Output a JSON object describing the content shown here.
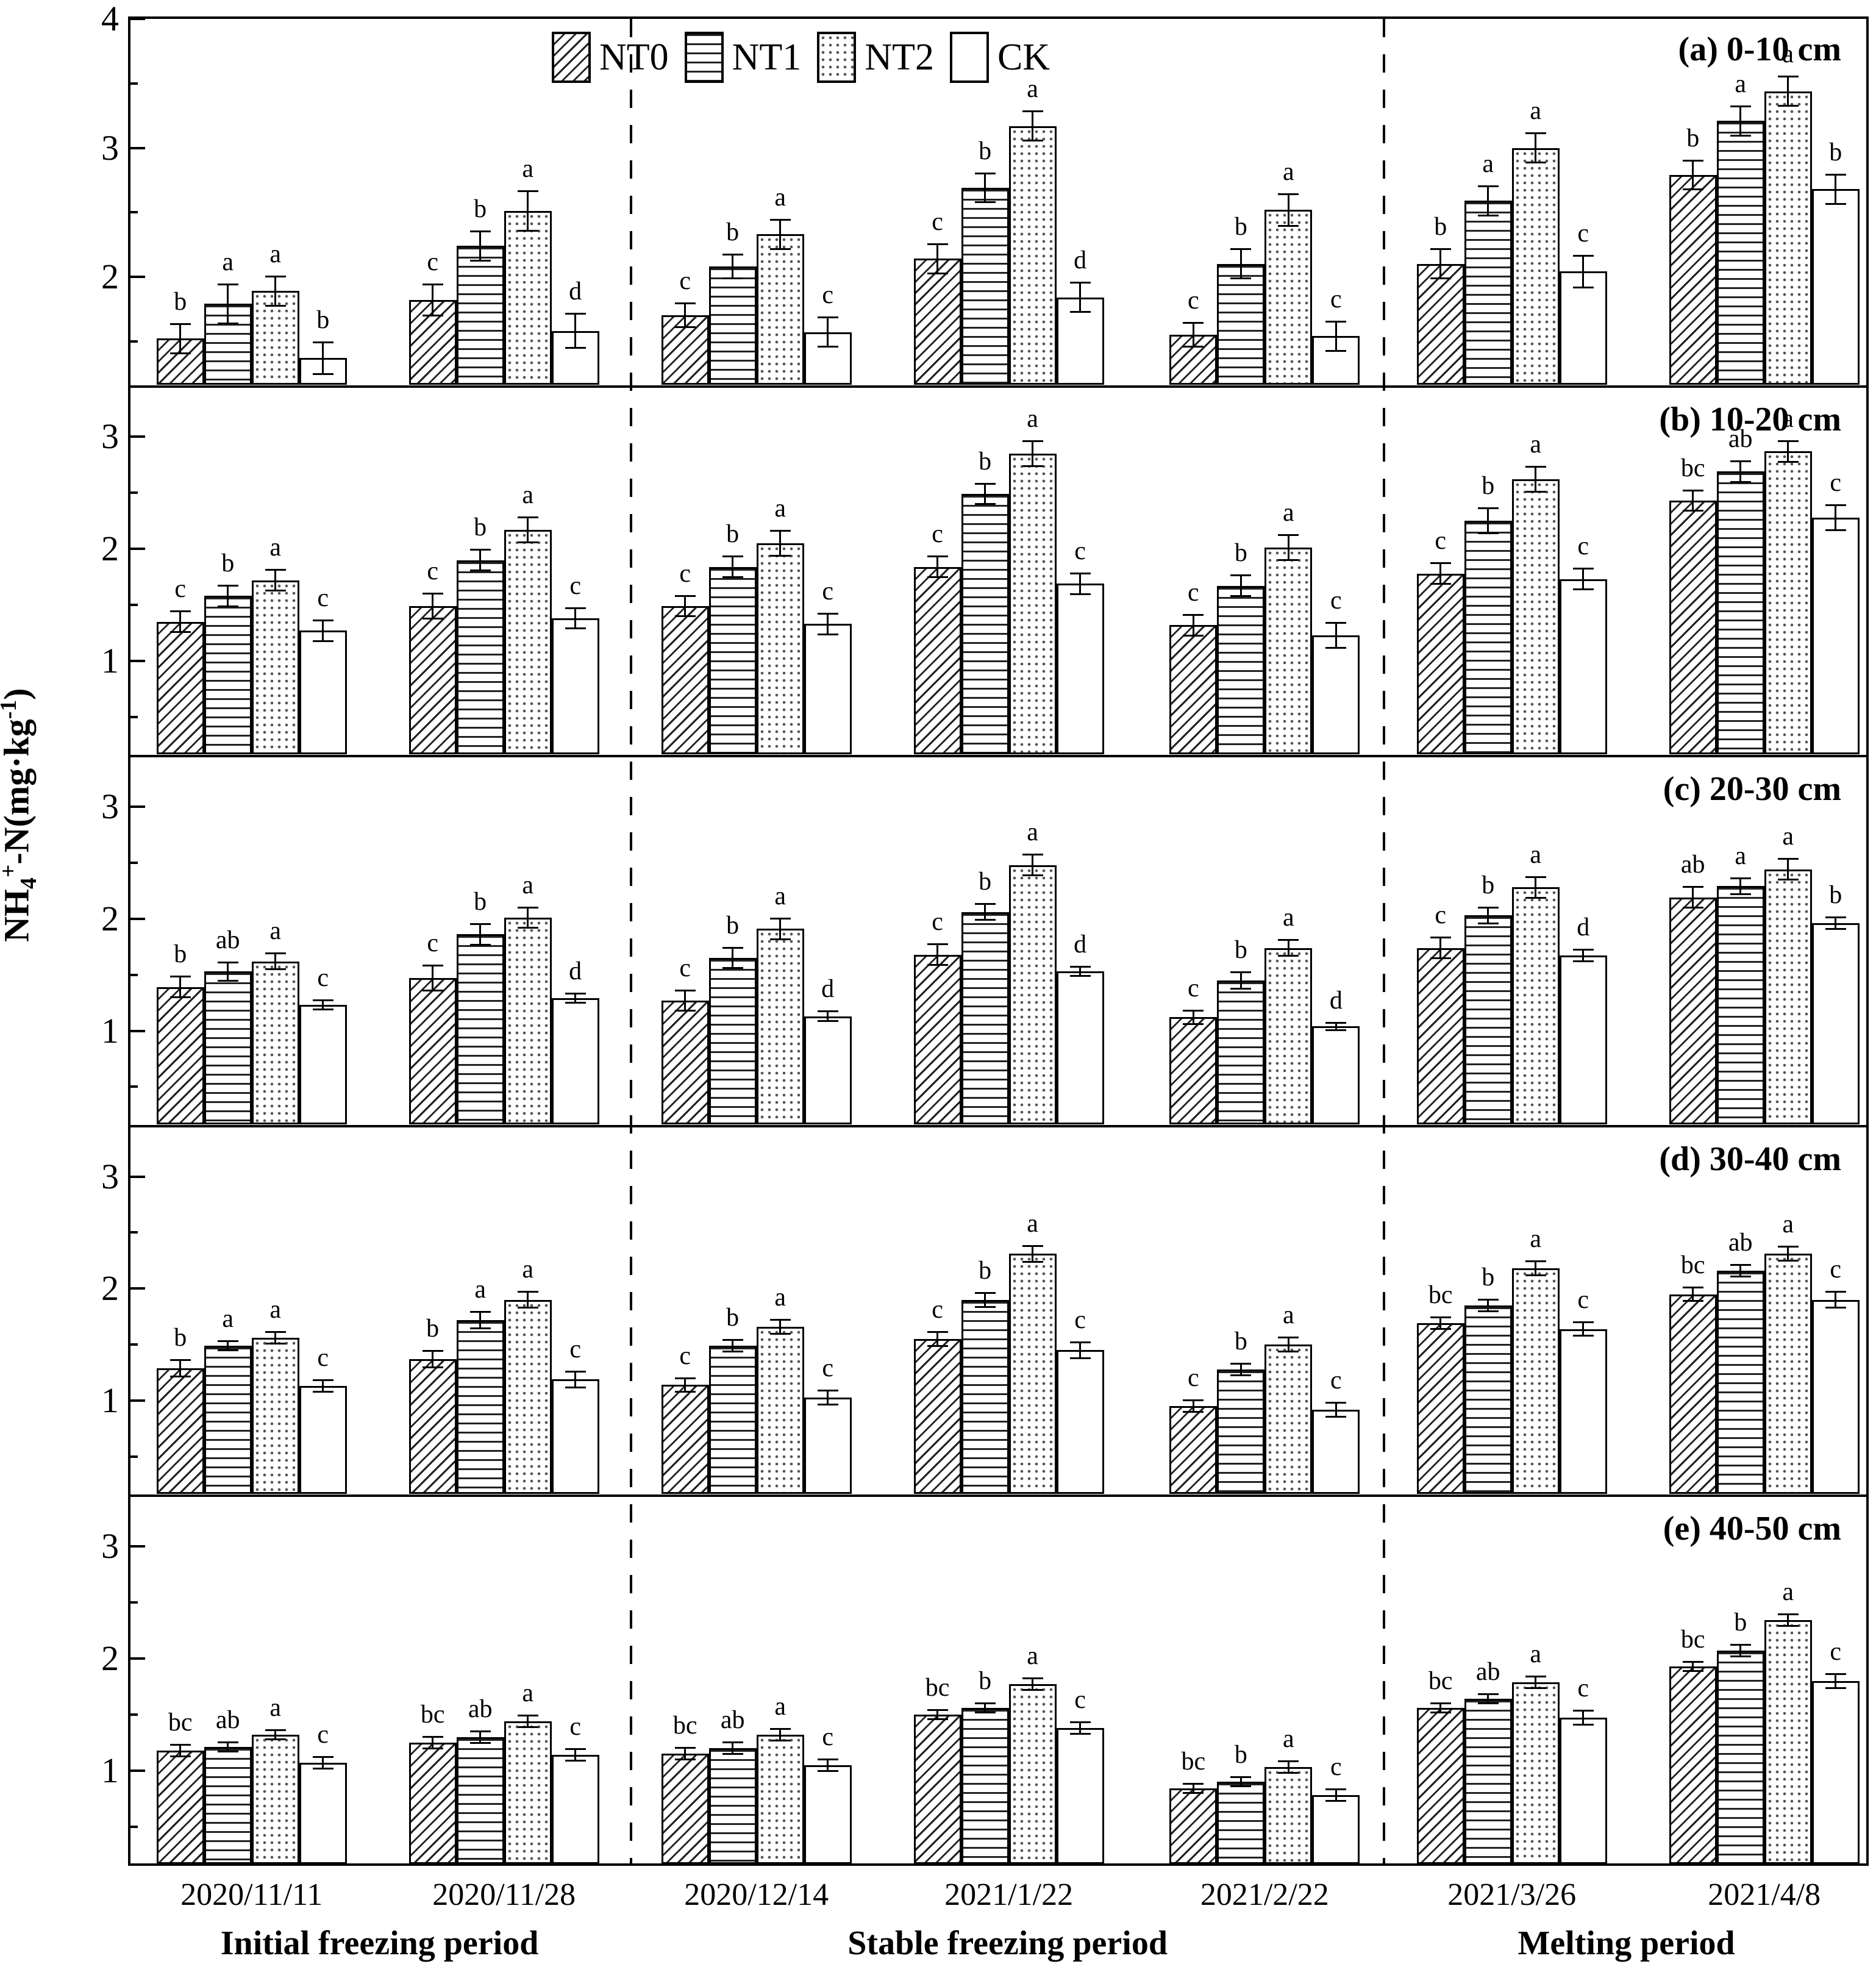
{
  "figure": {
    "y_axis_label_parts": {
      "prefix": "NH",
      "sub": "4",
      "sup": "+",
      "mid": "-N(mg·kg",
      "exp": "-1",
      "end": ")"
    },
    "x_axis_periods": [
      {
        "label": "Initial freezing period",
        "group_indices": [
          0,
          1
        ]
      },
      {
        "label": "Stable freezing period",
        "group_indices": [
          2,
          3,
          4
        ]
      },
      {
        "label": "Melting period",
        "group_indices": [
          5,
          6
        ]
      }
    ]
  },
  "legend": {
    "items": [
      {
        "label": "NT0",
        "pattern": "diagonal-hatch"
      },
      {
        "label": "NT1",
        "pattern": "horizontal-lines"
      },
      {
        "label": "NT2",
        "pattern": "dots"
      },
      {
        "label": "CK",
        "pattern": "plain-white"
      }
    ]
  },
  "chart_data": {
    "type": "bar",
    "categories": [
      "2020/11/11",
      "2020/11/28",
      "2020/12/14",
      "2021/1/22",
      "2021/2/22",
      "2021/3/26",
      "2021/4/8"
    ],
    "ylabel": "NH4+-N(mg·kg-1)",
    "grid": false,
    "legend_position": "top-center",
    "panels": [
      {
        "id": "a",
        "title": "(a) 0-10 cm",
        "depth": "0-10 cm",
        "ylim": [
          1.15,
          4.02
        ],
        "yticks_major": [
          2,
          3,
          4
        ],
        "yticks_minor": [
          1.5,
          2.5,
          3.5
        ],
        "series": [
          {
            "name": "NT0",
            "values": [
              1.52,
              1.82,
              1.7,
              2.14,
              1.55,
              2.1,
              2.79
            ],
            "errors": [
              0.12,
              0.13,
              0.1,
              0.12,
              0.1,
              0.12,
              0.12
            ],
            "letters": [
              "b",
              "c",
              "c",
              "c",
              "c",
              "b",
              "b"
            ]
          },
          {
            "name": "NT1",
            "values": [
              1.79,
              2.24,
              2.08,
              2.69,
              2.1,
              2.59,
              3.21
            ],
            "errors": [
              0.16,
              0.12,
              0.1,
              0.12,
              0.12,
              0.12,
              0.12
            ],
            "letters": [
              "a",
              "b",
              "b",
              "b",
              "b",
              "a",
              "a"
            ]
          },
          {
            "name": "NT2",
            "values": [
              1.89,
              2.51,
              2.33,
              3.17,
              2.52,
              3.0,
              3.44
            ],
            "errors": [
              0.12,
              0.16,
              0.12,
              0.12,
              0.13,
              0.12,
              0.12
            ],
            "letters": [
              "a",
              "a",
              "a",
              "a",
              "a",
              "a",
              "a"
            ]
          },
          {
            "name": "CK",
            "values": [
              1.37,
              1.58,
              1.57,
              1.84,
              1.54,
              2.04,
              2.68
            ],
            "errors": [
              0.13,
              0.14,
              0.12,
              0.12,
              0.12,
              0.13,
              0.12
            ],
            "letters": [
              "b",
              "d",
              "c",
              "d",
              "c",
              "c",
              "b"
            ]
          }
        ]
      },
      {
        "id": "b",
        "title": "(b) 10-20 cm",
        "depth": "10-20 cm",
        "ylim": [
          0.15,
          3.45
        ],
        "yticks_major": [
          1,
          2,
          3
        ],
        "yticks_minor": [
          0.5,
          1.5,
          2.5
        ],
        "series": [
          {
            "name": "NT0",
            "values": [
              1.35,
              1.49,
              1.49,
              1.84,
              1.32,
              1.78,
              2.43
            ],
            "errors": [
              0.1,
              0.12,
              0.1,
              0.1,
              0.1,
              0.1,
              0.1
            ],
            "letters": [
              "c",
              "c",
              "c",
              "c",
              "c",
              "c",
              "bc"
            ]
          },
          {
            "name": "NT1",
            "values": [
              1.58,
              1.9,
              1.84,
              2.49,
              1.67,
              2.25,
              2.69
            ],
            "errors": [
              0.1,
              0.1,
              0.1,
              0.1,
              0.1,
              0.12,
              0.1
            ],
            "letters": [
              "b",
              "b",
              "b",
              "b",
              "b",
              "b",
              "ab"
            ]
          },
          {
            "name": "NT2",
            "values": [
              1.72,
              2.17,
              2.05,
              2.85,
              2.01,
              2.62,
              2.87
            ],
            "errors": [
              0.1,
              0.12,
              0.12,
              0.12,
              0.12,
              0.12,
              0.1
            ],
            "letters": [
              "a",
              "a",
              "a",
              "a",
              "a",
              "a",
              "a"
            ]
          },
          {
            "name": "CK",
            "values": [
              1.27,
              1.38,
              1.33,
              1.69,
              1.23,
              1.73,
              2.28
            ],
            "errors": [
              0.1,
              0.1,
              0.1,
              0.1,
              0.12,
              0.1,
              0.12
            ],
            "letters": [
              "c",
              "c",
              "c",
              "c",
              "c",
              "c",
              "c"
            ]
          }
        ]
      },
      {
        "id": "c",
        "title": "(c) 20-30 cm",
        "depth": "20-30 cm",
        "ylim": [
          0.15,
          3.45
        ],
        "yticks_major": [
          1,
          2,
          3
        ],
        "yticks_minor": [
          0.5,
          1.5,
          2.5
        ],
        "series": [
          {
            "name": "NT0",
            "values": [
              1.39,
              1.47,
              1.27,
              1.68,
              1.12,
              1.74,
              2.19
            ],
            "errors": [
              0.1,
              0.12,
              0.1,
              0.1,
              0.07,
              0.1,
              0.1
            ],
            "letters": [
              "b",
              "c",
              "c",
              "c",
              "c",
              "c",
              "ab"
            ]
          },
          {
            "name": "NT1",
            "values": [
              1.53,
              1.86,
              1.65,
              2.06,
              1.45,
              2.03,
              2.29
            ],
            "errors": [
              0.09,
              0.1,
              0.1,
              0.08,
              0.08,
              0.08,
              0.08
            ],
            "letters": [
              "ab",
              "b",
              "b",
              "b",
              "b",
              "b",
              "a"
            ]
          },
          {
            "name": "NT2",
            "values": [
              1.62,
              2.01,
              1.91,
              2.48,
              1.74,
              2.28,
              2.44
            ],
            "errors": [
              0.08,
              0.1,
              0.1,
              0.1,
              0.08,
              0.1,
              0.1
            ],
            "letters": [
              "a",
              "a",
              "a",
              "a",
              "a",
              "a",
              "a"
            ]
          },
          {
            "name": "CK",
            "values": [
              1.23,
              1.29,
              1.13,
              1.53,
              1.04,
              1.67,
              1.96
            ],
            "errors": [
              0.05,
              0.05,
              0.05,
              0.05,
              0.04,
              0.06,
              0.06
            ],
            "letters": [
              "c",
              "d",
              "d",
              "d",
              "d",
              "d",
              "b"
            ]
          }
        ]
      },
      {
        "id": "d",
        "title": "(d) 30-40 cm",
        "depth": "30-40 cm",
        "ylim": [
          0.15,
          3.45
        ],
        "yticks_major": [
          1,
          2,
          3
        ],
        "yticks_minor": [
          0.5,
          1.5,
          2.5
        ],
        "series": [
          {
            "name": "NT0",
            "values": [
              1.29,
              1.37,
              1.14,
              1.55,
              0.95,
              1.69,
              1.95
            ],
            "errors": [
              0.08,
              0.08,
              0.07,
              0.07,
              0.06,
              0.06,
              0.07
            ],
            "letters": [
              "b",
              "b",
              "c",
              "c",
              "c",
              "bc",
              "bc"
            ]
          },
          {
            "name": "NT1",
            "values": [
              1.49,
              1.72,
              1.49,
              1.9,
              1.28,
              1.85,
              2.16
            ],
            "errors": [
              0.05,
              0.08,
              0.06,
              0.07,
              0.06,
              0.06,
              0.06
            ],
            "letters": [
              "a",
              "a",
              "b",
              "b",
              "b",
              "b",
              "ab"
            ]
          },
          {
            "name": "NT2",
            "values": [
              1.56,
              1.9,
              1.66,
              2.31,
              1.5,
              2.18,
              2.31
            ],
            "errors": [
              0.06,
              0.08,
              0.07,
              0.08,
              0.07,
              0.07,
              0.07
            ],
            "letters": [
              "a",
              "a",
              "a",
              "a",
              "a",
              "a",
              "a"
            ]
          },
          {
            "name": "CK",
            "values": [
              1.13,
              1.19,
              1.03,
              1.45,
              0.92,
              1.64,
              1.9
            ],
            "errors": [
              0.06,
              0.08,
              0.07,
              0.08,
              0.07,
              0.07,
              0.08
            ],
            "letters": [
              "c",
              "c",
              "c",
              "c",
              "c",
              "c",
              "c"
            ]
          }
        ]
      },
      {
        "id": "e",
        "title": "(e) 40-50 cm",
        "depth": "40-50 cm",
        "ylim": [
          0.15,
          3.45
        ],
        "yticks_major": [
          1,
          2,
          3
        ],
        "yticks_minor": [
          0.5,
          1.5,
          2.5
        ],
        "series": [
          {
            "name": "NT0",
            "values": [
              1.18,
              1.25,
              1.15,
              1.5,
              0.84,
              1.56,
              1.93
            ],
            "errors": [
              0.06,
              0.06,
              0.06,
              0.05,
              0.05,
              0.05,
              0.05
            ],
            "letters": [
              "bc",
              "bc",
              "bc",
              "bc",
              "bc",
              "bc",
              "bc"
            ]
          },
          {
            "name": "NT1",
            "values": [
              1.21,
              1.3,
              1.2,
              1.56,
              0.9,
              1.64,
              2.07
            ],
            "errors": [
              0.05,
              0.06,
              0.06,
              0.05,
              0.05,
              0.05,
              0.06
            ],
            "letters": [
              "ab",
              "ab",
              "ab",
              "b",
              "b",
              "ab",
              "b"
            ]
          },
          {
            "name": "NT2",
            "values": [
              1.32,
              1.44,
              1.32,
              1.77,
              1.03,
              1.79,
              2.34
            ],
            "errors": [
              0.05,
              0.06,
              0.06,
              0.06,
              0.06,
              0.06,
              0.06
            ],
            "letters": [
              "a",
              "a",
              "a",
              "a",
              "a",
              "a",
              "a"
            ]
          },
          {
            "name": "CK",
            "values": [
              1.07,
              1.14,
              1.05,
              1.38,
              0.78,
              1.47,
              1.8
            ],
            "errors": [
              0.06,
              0.06,
              0.06,
              0.06,
              0.06,
              0.07,
              0.07
            ],
            "letters": [
              "c",
              "c",
              "c",
              "c",
              "c",
              "c",
              "c"
            ]
          }
        ]
      }
    ]
  }
}
